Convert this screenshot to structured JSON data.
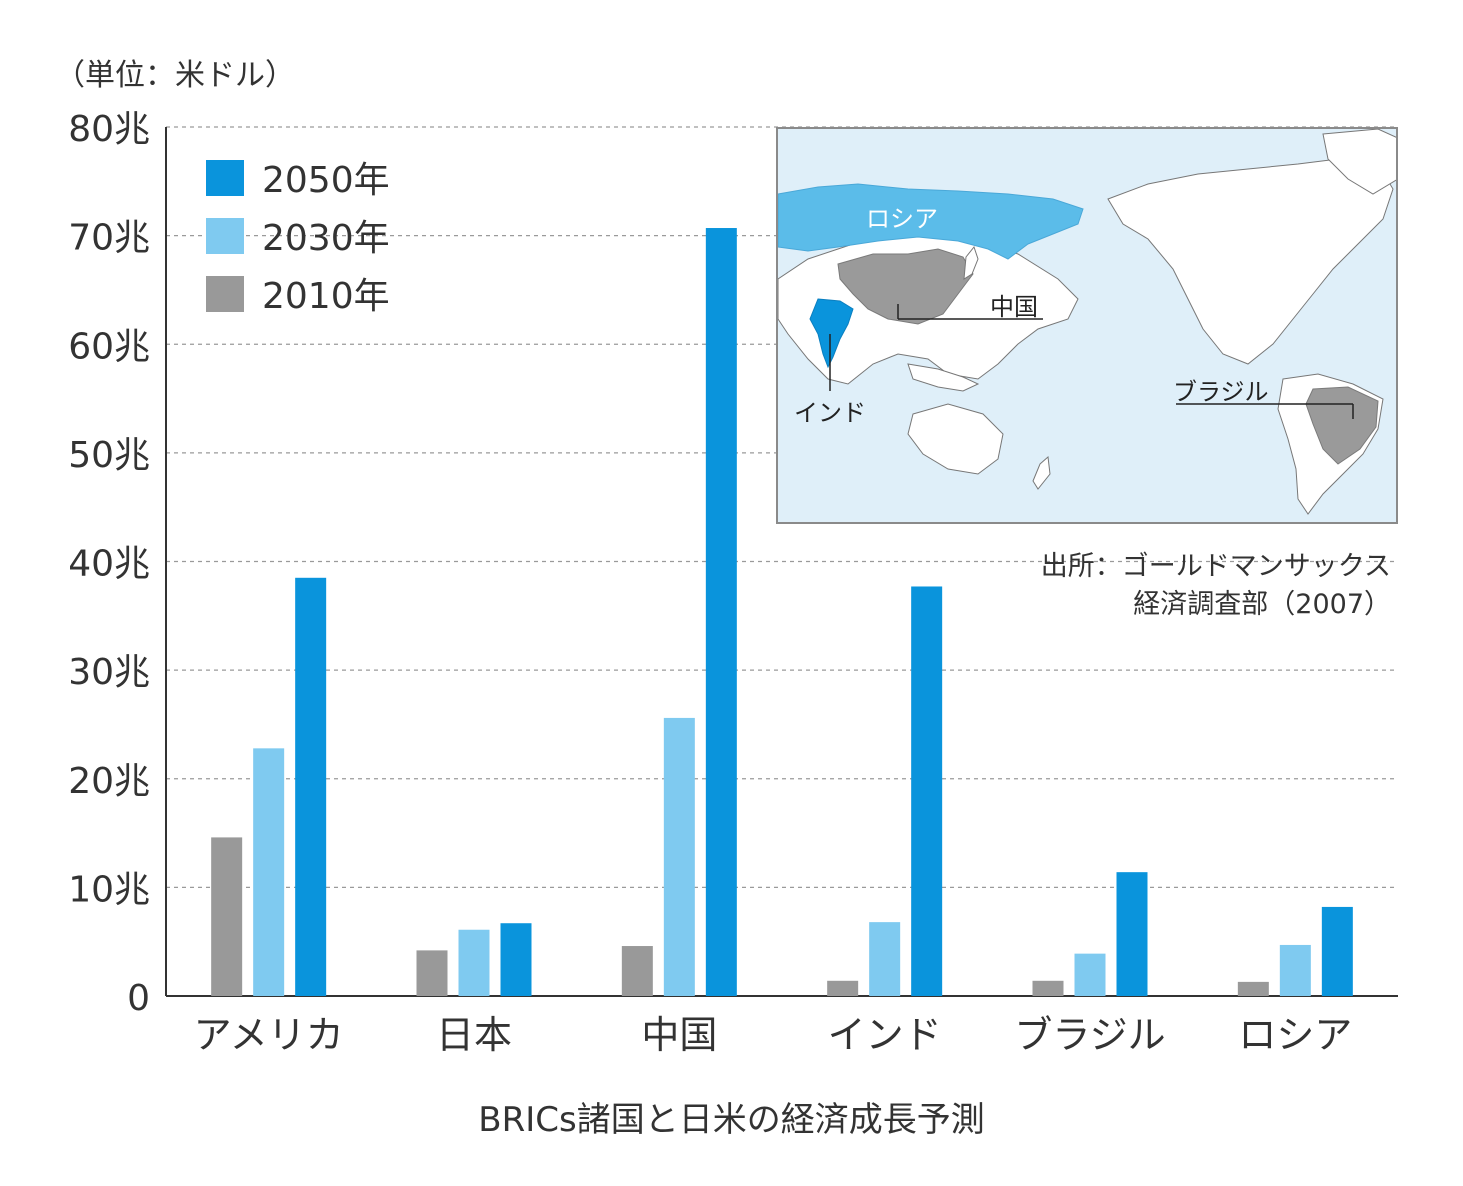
{
  "unit_label": "（単位：米ドル）",
  "caption": "BRICs諸国と日米の経済成長予測",
  "source": {
    "line1": "出所：ゴールドマンサックス",
    "line2": "経済調査部（2007）"
  },
  "map": {
    "labels": {
      "russia": "ロシア",
      "china": "中国",
      "india": "インド",
      "brazil": "ブラジル"
    }
  },
  "colors": {
    "s2050": "#0a94dc",
    "s2030": "#7fcaf0",
    "s2010": "#999999",
    "grid": "#9a9a9a",
    "map_sea": "#dfeff9",
    "map_land": "#ffffff",
    "map_gray": "#9a9a9a",
    "map_blue": "#5bbce9",
    "map_india": "#0a94dc"
  },
  "chart_data": {
    "type": "bar",
    "categories": [
      "アメリカ",
      "日本",
      "中国",
      "インド",
      "ブラジル",
      "ロシア"
    ],
    "series": [
      {
        "name": "2010年",
        "color": "#999999",
        "values": [
          14.6,
          4.2,
          4.6,
          1.4,
          1.4,
          1.3
        ]
      },
      {
        "name": "2030年",
        "color": "#7fcaf0",
        "values": [
          22.8,
          6.1,
          25.6,
          6.8,
          3.9,
          4.7
        ]
      },
      {
        "name": "2050年",
        "color": "#0a94dc",
        "values": [
          38.5,
          6.7,
          70.7,
          37.7,
          11.4,
          8.2
        ]
      }
    ],
    "legend_order": [
      "2050年",
      "2030年",
      "2010年"
    ],
    "legend_position": "top-left",
    "yticks": [
      0,
      10,
      20,
      30,
      40,
      50,
      60,
      70,
      80
    ],
    "ytick_labels": [
      "0",
      "10兆",
      "20兆",
      "30兆",
      "40兆",
      "50兆",
      "60兆",
      "70兆",
      "80兆"
    ],
    "ylim": [
      0,
      80
    ],
    "grid": true
  }
}
